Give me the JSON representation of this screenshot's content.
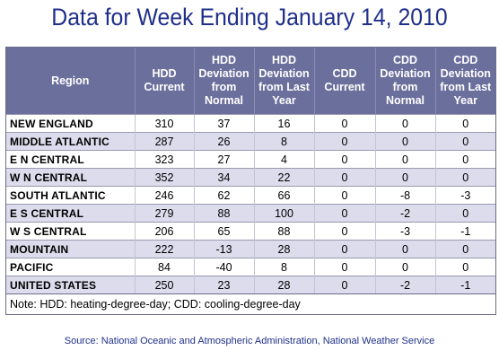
{
  "title": "Data for Week Ending January 14, 2010",
  "table": {
    "headers": [
      "Region",
      "HDD Current",
      "HDD Deviation from Normal",
      "HDD Deviation from Last Year",
      "CDD Current",
      "CDD Deviation from Normal",
      "CDD Deviation from Last Year"
    ],
    "rows": [
      [
        "NEW ENGLAND",
        "310",
        "37",
        "16",
        "0",
        "0",
        "0"
      ],
      [
        "MIDDLE ATLANTIC",
        "287",
        "26",
        "8",
        "0",
        "0",
        "0"
      ],
      [
        "E N CENTRAL",
        "323",
        "27",
        "4",
        "0",
        "0",
        "0"
      ],
      [
        "W N CENTRAL",
        "352",
        "34",
        "22",
        "0",
        "0",
        "0"
      ],
      [
        "SOUTH ATLANTIC",
        "246",
        "62",
        "66",
        "0",
        "-8",
        "-3"
      ],
      [
        "E S CENTRAL",
        "279",
        "88",
        "100",
        "0",
        "-2",
        "0"
      ],
      [
        "W S CENTRAL",
        "206",
        "65",
        "88",
        "0",
        "-3",
        "-1"
      ],
      [
        "MOUNTAIN",
        "222",
        "-13",
        "28",
        "0",
        "0",
        "0"
      ],
      [
        "PACIFIC",
        "84",
        "-40",
        "8",
        "0",
        "0",
        "0"
      ],
      [
        "UNITED STATES",
        "250",
        "23",
        "28",
        "0",
        "-2",
        "-1"
      ]
    ]
  },
  "note": "Note: HDD: heating-degree-day; CDD: cooling-degree-day",
  "source": "Source:  National Oceanic and Atmospheric Administration, National Weather Service"
}
